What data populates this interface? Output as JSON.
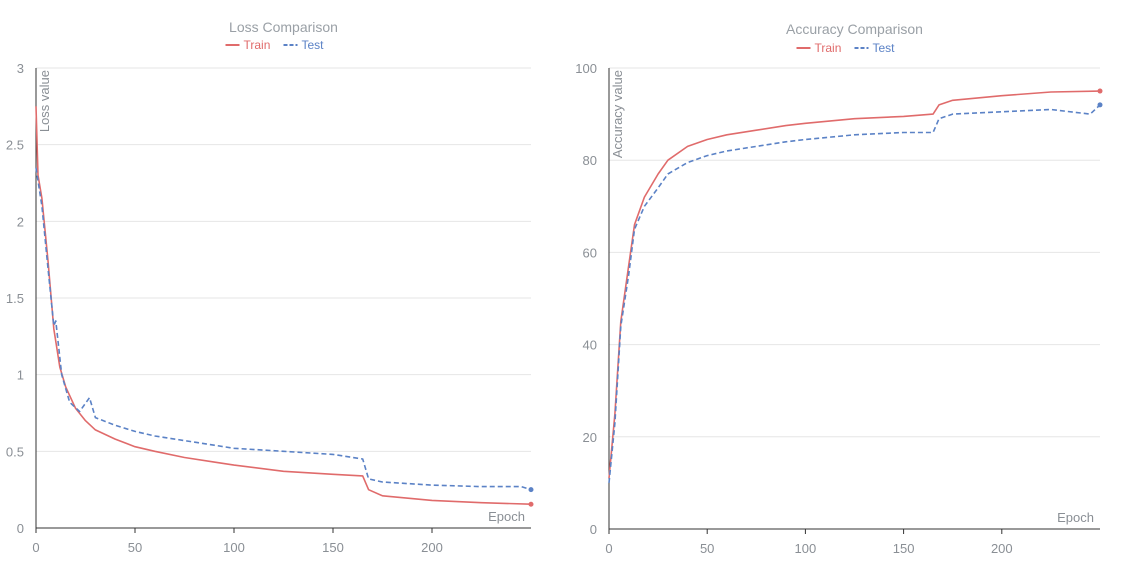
{
  "chart_data": [
    {
      "type": "line",
      "title": "Loss Comparison",
      "xlabel": "Epoch",
      "ylabel": "Loss value",
      "xlim": [
        0,
        250
      ],
      "ylim": [
        0,
        3
      ],
      "xticks": [
        0,
        50,
        100,
        150,
        200
      ],
      "yticks": [
        0,
        0.5,
        1,
        1.5,
        2,
        2.5,
        3
      ],
      "ytick_labels": [
        "0",
        "0.5",
        "1",
        "1.5",
        "2",
        "2.5",
        "3"
      ],
      "legend": "top-center",
      "grid": "horizontal",
      "series": [
        {
          "name": "Train",
          "color": "#e06b6b",
          "style": "solid",
          "points": [
            [
              0,
              2.75
            ],
            [
              1,
              2.3
            ],
            [
              3,
              2.15
            ],
            [
              6,
              1.75
            ],
            [
              9,
              1.3
            ],
            [
              12,
              1.05
            ],
            [
              15,
              0.92
            ],
            [
              20,
              0.78
            ],
            [
              25,
              0.7
            ],
            [
              30,
              0.64
            ],
            [
              40,
              0.58
            ],
            [
              50,
              0.53
            ],
            [
              60,
              0.5
            ],
            [
              75,
              0.46
            ],
            [
              90,
              0.43
            ],
            [
              100,
              0.41
            ],
            [
              125,
              0.37
            ],
            [
              150,
              0.35
            ],
            [
              165,
              0.34
            ],
            [
              168,
              0.25
            ],
            [
              175,
              0.21
            ],
            [
              200,
              0.18
            ],
            [
              225,
              0.165
            ],
            [
              250,
              0.155
            ]
          ]
        },
        {
          "name": "Test",
          "color": "#5b82c6",
          "style": "dashed",
          "points": [
            [
              0,
              2.35
            ],
            [
              3,
              2.1
            ],
            [
              6,
              1.7
            ],
            [
              9,
              1.32
            ],
            [
              10,
              1.35
            ],
            [
              13,
              1.0
            ],
            [
              17,
              0.82
            ],
            [
              22,
              0.76
            ],
            [
              27,
              0.85
            ],
            [
              30,
              0.72
            ],
            [
              40,
              0.67
            ],
            [
              50,
              0.63
            ],
            [
              60,
              0.6
            ],
            [
              75,
              0.57
            ],
            [
              90,
              0.54
            ],
            [
              100,
              0.52
            ],
            [
              125,
              0.5
            ],
            [
              150,
              0.48
            ],
            [
              165,
              0.45
            ],
            [
              168,
              0.32
            ],
            [
              175,
              0.3
            ],
            [
              200,
              0.28
            ],
            [
              225,
              0.27
            ],
            [
              245,
              0.27
            ],
            [
              250,
              0.25
            ]
          ]
        }
      ]
    },
    {
      "type": "line",
      "title": "Accuracy Comparison",
      "xlabel": "Epoch",
      "ylabel": "Accuracy value",
      "xlim": [
        0,
        250
      ],
      "ylim": [
        0,
        100
      ],
      "xticks": [
        0,
        50,
        100,
        150,
        200
      ],
      "yticks": [
        0,
        20,
        40,
        60,
        80,
        100
      ],
      "ytick_labels": [
        "0",
        "20",
        "40",
        "60",
        "80",
        "100"
      ],
      "legend": "top-center",
      "grid": "horizontal",
      "series": [
        {
          "name": "Train",
          "color": "#e06b6b",
          "style": "solid",
          "points": [
            [
              0,
              11
            ],
            [
              3,
              25
            ],
            [
              6,
              45
            ],
            [
              10,
              57
            ],
            [
              13,
              66
            ],
            [
              18,
              72
            ],
            [
              25,
              77
            ],
            [
              30,
              80
            ],
            [
              40,
              83
            ],
            [
              50,
              84.5
            ],
            [
              60,
              85.5
            ],
            [
              75,
              86.5
            ],
            [
              90,
              87.5
            ],
            [
              100,
              88
            ],
            [
              125,
              89
            ],
            [
              150,
              89.5
            ],
            [
              165,
              90
            ],
            [
              168,
              92
            ],
            [
              175,
              93
            ],
            [
              200,
              94
            ],
            [
              225,
              94.8
            ],
            [
              250,
              95
            ]
          ]
        },
        {
          "name": "Test",
          "color": "#5b82c6",
          "style": "dashed",
          "points": [
            [
              0,
              10
            ],
            [
              3,
              23
            ],
            [
              6,
              44
            ],
            [
              10,
              55
            ],
            [
              13,
              65
            ],
            [
              18,
              70
            ],
            [
              25,
              74
            ],
            [
              30,
              77
            ],
            [
              40,
              79.5
            ],
            [
              50,
              81
            ],
            [
              60,
              82
            ],
            [
              75,
              83
            ],
            [
              90,
              84
            ],
            [
              100,
              84.5
            ],
            [
              125,
              85.5
            ],
            [
              150,
              86
            ],
            [
              165,
              86
            ],
            [
              168,
              89
            ],
            [
              175,
              90
            ],
            [
              200,
              90.5
            ],
            [
              225,
              91
            ],
            [
              245,
              90
            ],
            [
              250,
              92
            ]
          ]
        }
      ]
    }
  ]
}
